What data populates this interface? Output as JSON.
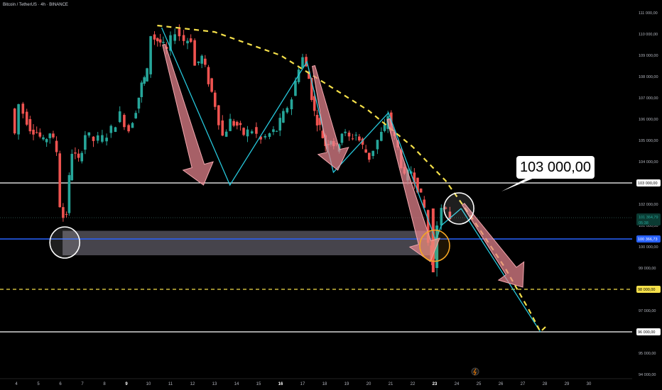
{
  "header": {
    "title": "Bitcoin / TetherUS · 4h · BINANCE"
  },
  "callout": {
    "text": "103 000,00"
  },
  "chart_data": {
    "type": "candlestick",
    "x_ticks": [
      "4",
      "5",
      "6",
      "7",
      "8",
      "9",
      "10",
      "11",
      "12",
      "13",
      "14",
      "15",
      "16",
      "17",
      "18",
      "19",
      "20",
      "21",
      "22",
      "23",
      "24",
      "25",
      "26",
      "27",
      "28",
      "29",
      "30"
    ],
    "bold_x_ticks": [
      "9",
      "16",
      "23"
    ],
    "y_ticks": [
      111000,
      110000,
      109000,
      108000,
      107000,
      106000,
      105000,
      104000,
      103000,
      102000,
      101000,
      100000,
      99000,
      98000,
      97000,
      96000,
      95000,
      94000
    ],
    "y_tick_labels": [
      "111 000,00",
      "110 000,00",
      "109 000,00",
      "108 000,00",
      "107 000,00",
      "106 000,00",
      "105 000,00",
      "104 000,00",
      "103 000,00",
      "102 000,00",
      "101 000,00",
      "100 000,00",
      "99 000,00",
      "98 000,00",
      "97 000,00",
      "96 000,00",
      "95 000,00",
      "94 000,00"
    ],
    "ylim": [
      93800,
      111300
    ],
    "price_labels": {
      "last_price": "101 364,79",
      "countdown": "05:38",
      "blue_line": "100 366,73",
      "yellow_line": "98 000,00",
      "white_line_top": "103 000,00",
      "white_line_bottom": "96 000,00"
    },
    "levels": [
      {
        "name": "resistance",
        "value": 103000,
        "color": "#ffffff",
        "style": "solid"
      },
      {
        "name": "blue",
        "value": 100366.73,
        "color": "#2962ff",
        "style": "solid"
      },
      {
        "name": "target-yellow",
        "value": 98000,
        "color": "#f5e04a",
        "style": "dashed"
      },
      {
        "name": "support",
        "value": 96000,
        "color": "#ffffff",
        "style": "solid"
      }
    ],
    "zone": {
      "top": 100750,
      "bottom": 99600,
      "from_day": 6.1,
      "to_day": 23.0
    },
    "ohlc_path": [
      [
        3.85,
        106500
      ],
      [
        4.0,
        105300
      ],
      [
        4.2,
        106700
      ],
      [
        4.4,
        106300
      ],
      [
        4.7,
        105600
      ],
      [
        5.0,
        105400
      ],
      [
        5.3,
        104900
      ],
      [
        5.6,
        105400
      ],
      [
        5.9,
        104500
      ],
      [
        6.05,
        102000
      ],
      [
        6.2,
        101400
      ],
      [
        6.35,
        101600
      ],
      [
        6.45,
        103200
      ],
      [
        6.6,
        104500
      ],
      [
        6.9,
        104000
      ],
      [
        7.2,
        105300
      ],
      [
        7.6,
        105000
      ],
      [
        8.0,
        105100
      ],
      [
        8.4,
        105500
      ],
      [
        8.8,
        106200
      ],
      [
        9.2,
        105500
      ],
      [
        9.5,
        106500
      ],
      [
        9.75,
        107600
      ],
      [
        10.0,
        108200
      ],
      [
        10.2,
        110000
      ],
      [
        10.35,
        109800
      ],
      [
        10.6,
        109600
      ],
      [
        10.9,
        109200
      ],
      [
        11.3,
        110200
      ],
      [
        11.7,
        109700
      ],
      [
        12.0,
        109800
      ],
      [
        12.2,
        108500
      ],
      [
        12.5,
        108900
      ],
      [
        12.8,
        107800
      ],
      [
        13.1,
        106700
      ],
      [
        13.45,
        105200
      ],
      [
        13.8,
        105900
      ],
      [
        14.1,
        105700
      ],
      [
        14.4,
        105300
      ],
      [
        14.8,
        105500
      ],
      [
        15.2,
        105000
      ],
      [
        15.6,
        105300
      ],
      [
        15.9,
        105500
      ],
      [
        16.2,
        106200
      ],
      [
        16.6,
        107000
      ],
      [
        16.9,
        108500
      ],
      [
        17.1,
        108900
      ],
      [
        17.35,
        107900
      ],
      [
        17.6,
        106300
      ],
      [
        17.85,
        105600
      ],
      [
        18.1,
        104800
      ],
      [
        18.35,
        105100
      ],
      [
        18.6,
        104600
      ],
      [
        18.85,
        105400
      ],
      [
        19.2,
        105100
      ],
      [
        19.5,
        105300
      ],
      [
        19.8,
        104700
      ],
      [
        20.1,
        104200
      ],
      [
        20.5,
        105000
      ],
      [
        20.8,
        105600
      ],
      [
        20.95,
        106200
      ],
      [
        21.1,
        105500
      ],
      [
        21.4,
        104600
      ],
      [
        21.7,
        103200
      ],
      [
        22.0,
        103600
      ],
      [
        22.3,
        102800
      ],
      [
        22.6,
        101800
      ],
      [
        22.8,
        100200
      ],
      [
        22.9,
        99300
      ],
      [
        23.05,
        100500
      ],
      [
        23.2,
        101000
      ],
      [
        23.4,
        101700
      ],
      [
        23.6,
        101600
      ],
      [
        23.78,
        101400
      ]
    ],
    "zigzag_cyan": [
      [
        10.6,
        110300
      ],
      [
        13.7,
        102900
      ],
      [
        17.2,
        108700
      ],
      [
        18.4,
        103500
      ],
      [
        20.9,
        106300
      ],
      [
        23.05,
        100300
      ],
      [
        23.3,
        101000
      ],
      [
        24.2,
        101800
      ]
    ],
    "projection_cyan": [
      [
        24.2,
        101800
      ],
      [
        27.8,
        96000
      ]
    ],
    "dashed_curve": [
      [
        10.4,
        110400
      ],
      [
        13.0,
        110100
      ],
      [
        16.0,
        109000
      ],
      [
        18.0,
        107700
      ],
      [
        20.0,
        106400
      ],
      [
        22.0,
        104700
      ],
      [
        23.5,
        103100
      ],
      [
        24.8,
        101200
      ],
      [
        26.2,
        99000
      ],
      [
        27.3,
        97000
      ],
      [
        27.8,
        96000
      ],
      [
        28.1,
        96300
      ]
    ],
    "arrows": [
      {
        "from": [
          10.7,
          109500
        ],
        "to": [
          12.5,
          102900
        ]
      },
      {
        "from": [
          17.5,
          108500
        ],
        "to": [
          18.6,
          103600
        ]
      },
      {
        "from": [
          20.9,
          106000
        ],
        "to": [
          22.8,
          99300
        ]
      },
      {
        "from": [
          24.3,
          102000
        ],
        "to": [
          27.0,
          98100
        ]
      }
    ],
    "circles": [
      {
        "day": 6.2,
        "value": 100200,
        "color": "#ffffff"
      },
      {
        "day": 24.1,
        "value": 101800,
        "color": "#ffffff"
      },
      {
        "day": 23.0,
        "value": 100050,
        "color": "#f5a623"
      }
    ],
    "colors": {
      "up": "#26a69a",
      "down": "#ef5350",
      "background": "#000000",
      "cyan": "#26c6da",
      "dashed": "#f5e04a",
      "arrow": "#e8858f"
    }
  }
}
